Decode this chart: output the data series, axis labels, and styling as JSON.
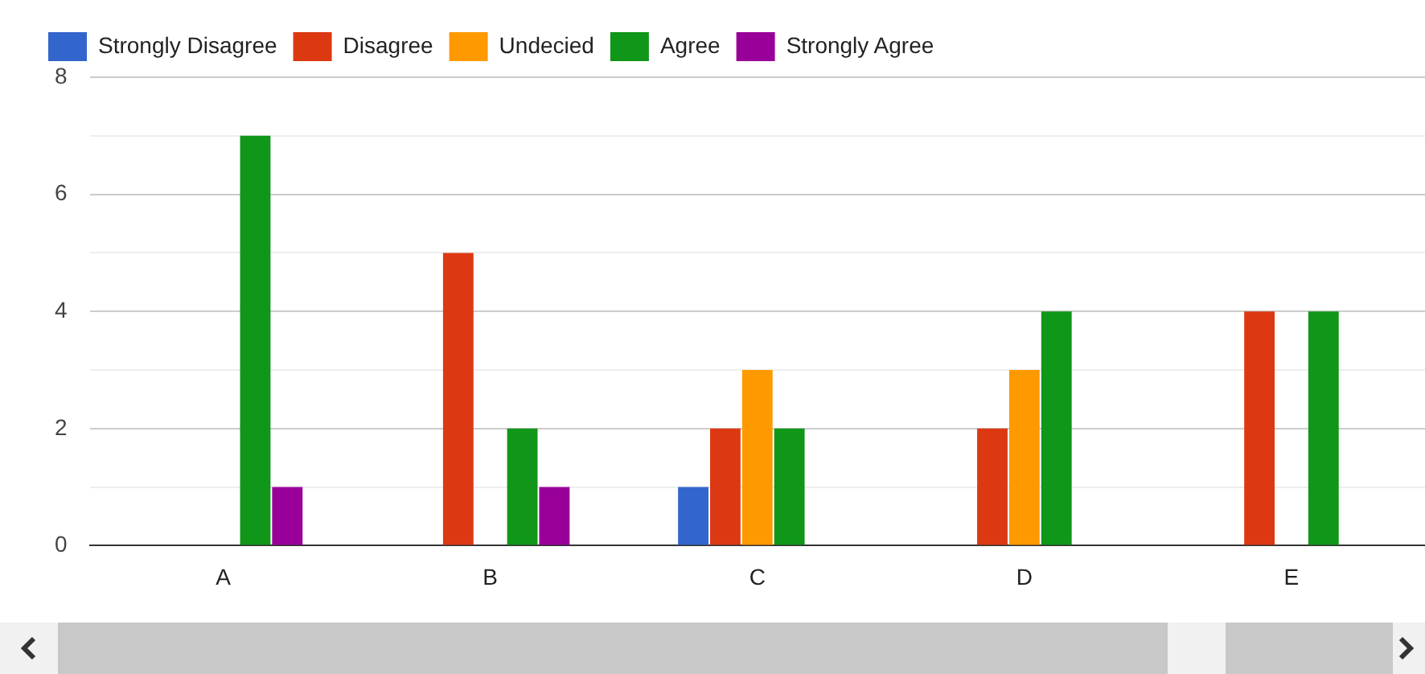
{
  "chart_data": {
    "type": "bar",
    "categories": [
      "A",
      "B",
      "C",
      "D",
      "E"
    ],
    "series": [
      {
        "name": "Strongly Disagree",
        "color": "#3366cc",
        "values": [
          0,
          0,
          1,
          0,
          0
        ]
      },
      {
        "name": "Disagree",
        "color": "#dc3912",
        "values": [
          0,
          5,
          2,
          2,
          4
        ]
      },
      {
        "name": "Undecied",
        "color": "#ff9900",
        "values": [
          0,
          0,
          3,
          3,
          0
        ]
      },
      {
        "name": "Agree",
        "color": "#109618",
        "values": [
          7,
          2,
          2,
          4,
          4
        ]
      },
      {
        "name": "Strongly Agree",
        "color": "#990099",
        "values": [
          1,
          1,
          0,
          0,
          0
        ]
      }
    ],
    "ylim": [
      0,
      8
    ],
    "yticks": [
      0,
      {
        "value": 1,
        "label": null
      },
      2,
      {
        "value": 3,
        "label": null
      },
      4,
      {
        "value": 5,
        "label": null
      },
      6,
      {
        "value": 7,
        "label": null
      },
      8
    ],
    "grid": "y",
    "legend": "top left"
  }
}
